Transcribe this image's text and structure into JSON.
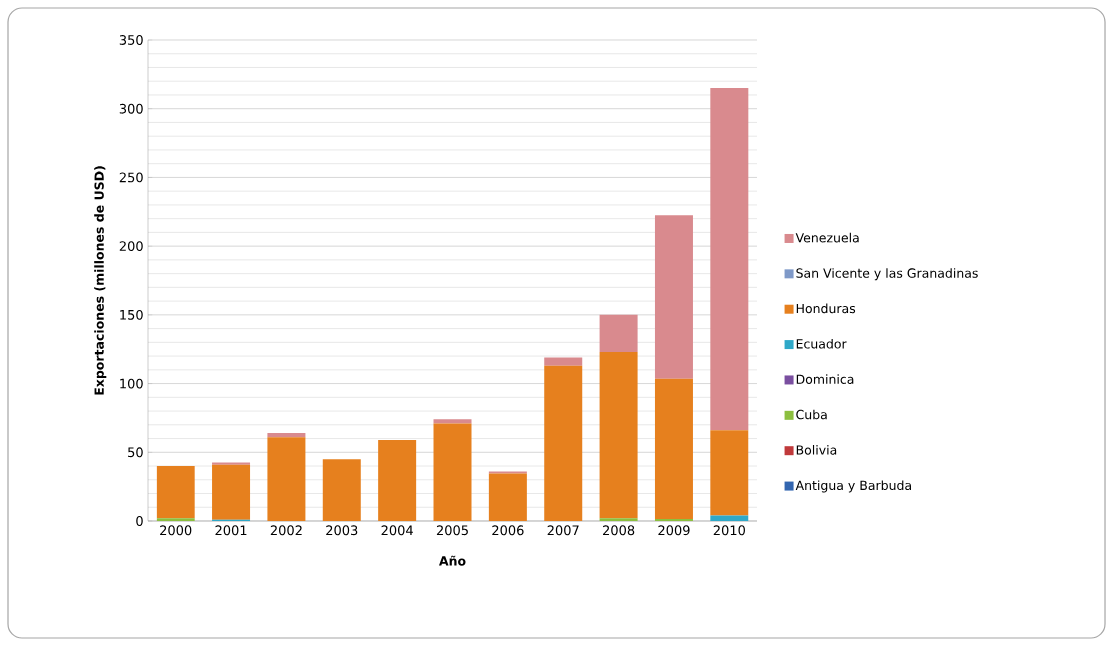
{
  "chart_data": {
    "type": "bar",
    "stacked": true,
    "xlabel": "Año",
    "ylabel": "Exportaciones (millones de USD)",
    "categories": [
      "2000",
      "2001",
      "2002",
      "2003",
      "2004",
      "2005",
      "2006",
      "2007",
      "2008",
      "2009",
      "2010"
    ],
    "series": [
      {
        "name": "Antigua y Barbuda",
        "color": "#3366b0",
        "values": [
          0,
          0,
          0,
          0,
          0,
          0,
          0,
          0,
          0,
          0,
          0
        ]
      },
      {
        "name": "Bolivia",
        "color": "#c0393b",
        "values": [
          0,
          0,
          0,
          0,
          0,
          0,
          0,
          0,
          0,
          0,
          0
        ]
      },
      {
        "name": "Cuba",
        "color": "#8cbf3f",
        "values": [
          2,
          0,
          0,
          0,
          0,
          0,
          0,
          0,
          2,
          1.5,
          0
        ]
      },
      {
        "name": "Dominica",
        "color": "#7a4fa0",
        "values": [
          0,
          0,
          0,
          0,
          0,
          0,
          0,
          0,
          0,
          0,
          0
        ]
      },
      {
        "name": "Ecuador",
        "color": "#2fa8c8",
        "values": [
          0,
          1,
          0,
          0,
          0,
          0,
          0,
          0,
          0,
          0,
          4
        ]
      },
      {
        "name": "Honduras",
        "color": "#e6801e",
        "values": [
          38,
          40,
          61,
          45,
          59,
          71,
          34.5,
          113,
          121,
          102,
          62
        ]
      },
      {
        "name": "San Vicente y las Granadinas",
        "color": "#7f99c8",
        "values": [
          0,
          0,
          0,
          0,
          0,
          0,
          0,
          0,
          0,
          0,
          0
        ]
      },
      {
        "name": "Venezuela",
        "color": "#d98a8e",
        "values": [
          0,
          1.5,
          3,
          0,
          0,
          3,
          1.5,
          6,
          27,
          119,
          249
        ]
      }
    ],
    "ylim": [
      0,
      350
    ],
    "yticks": [
      0,
      50,
      100,
      150,
      200,
      250,
      300,
      350
    ],
    "grid": "y",
    "legend": "right"
  }
}
